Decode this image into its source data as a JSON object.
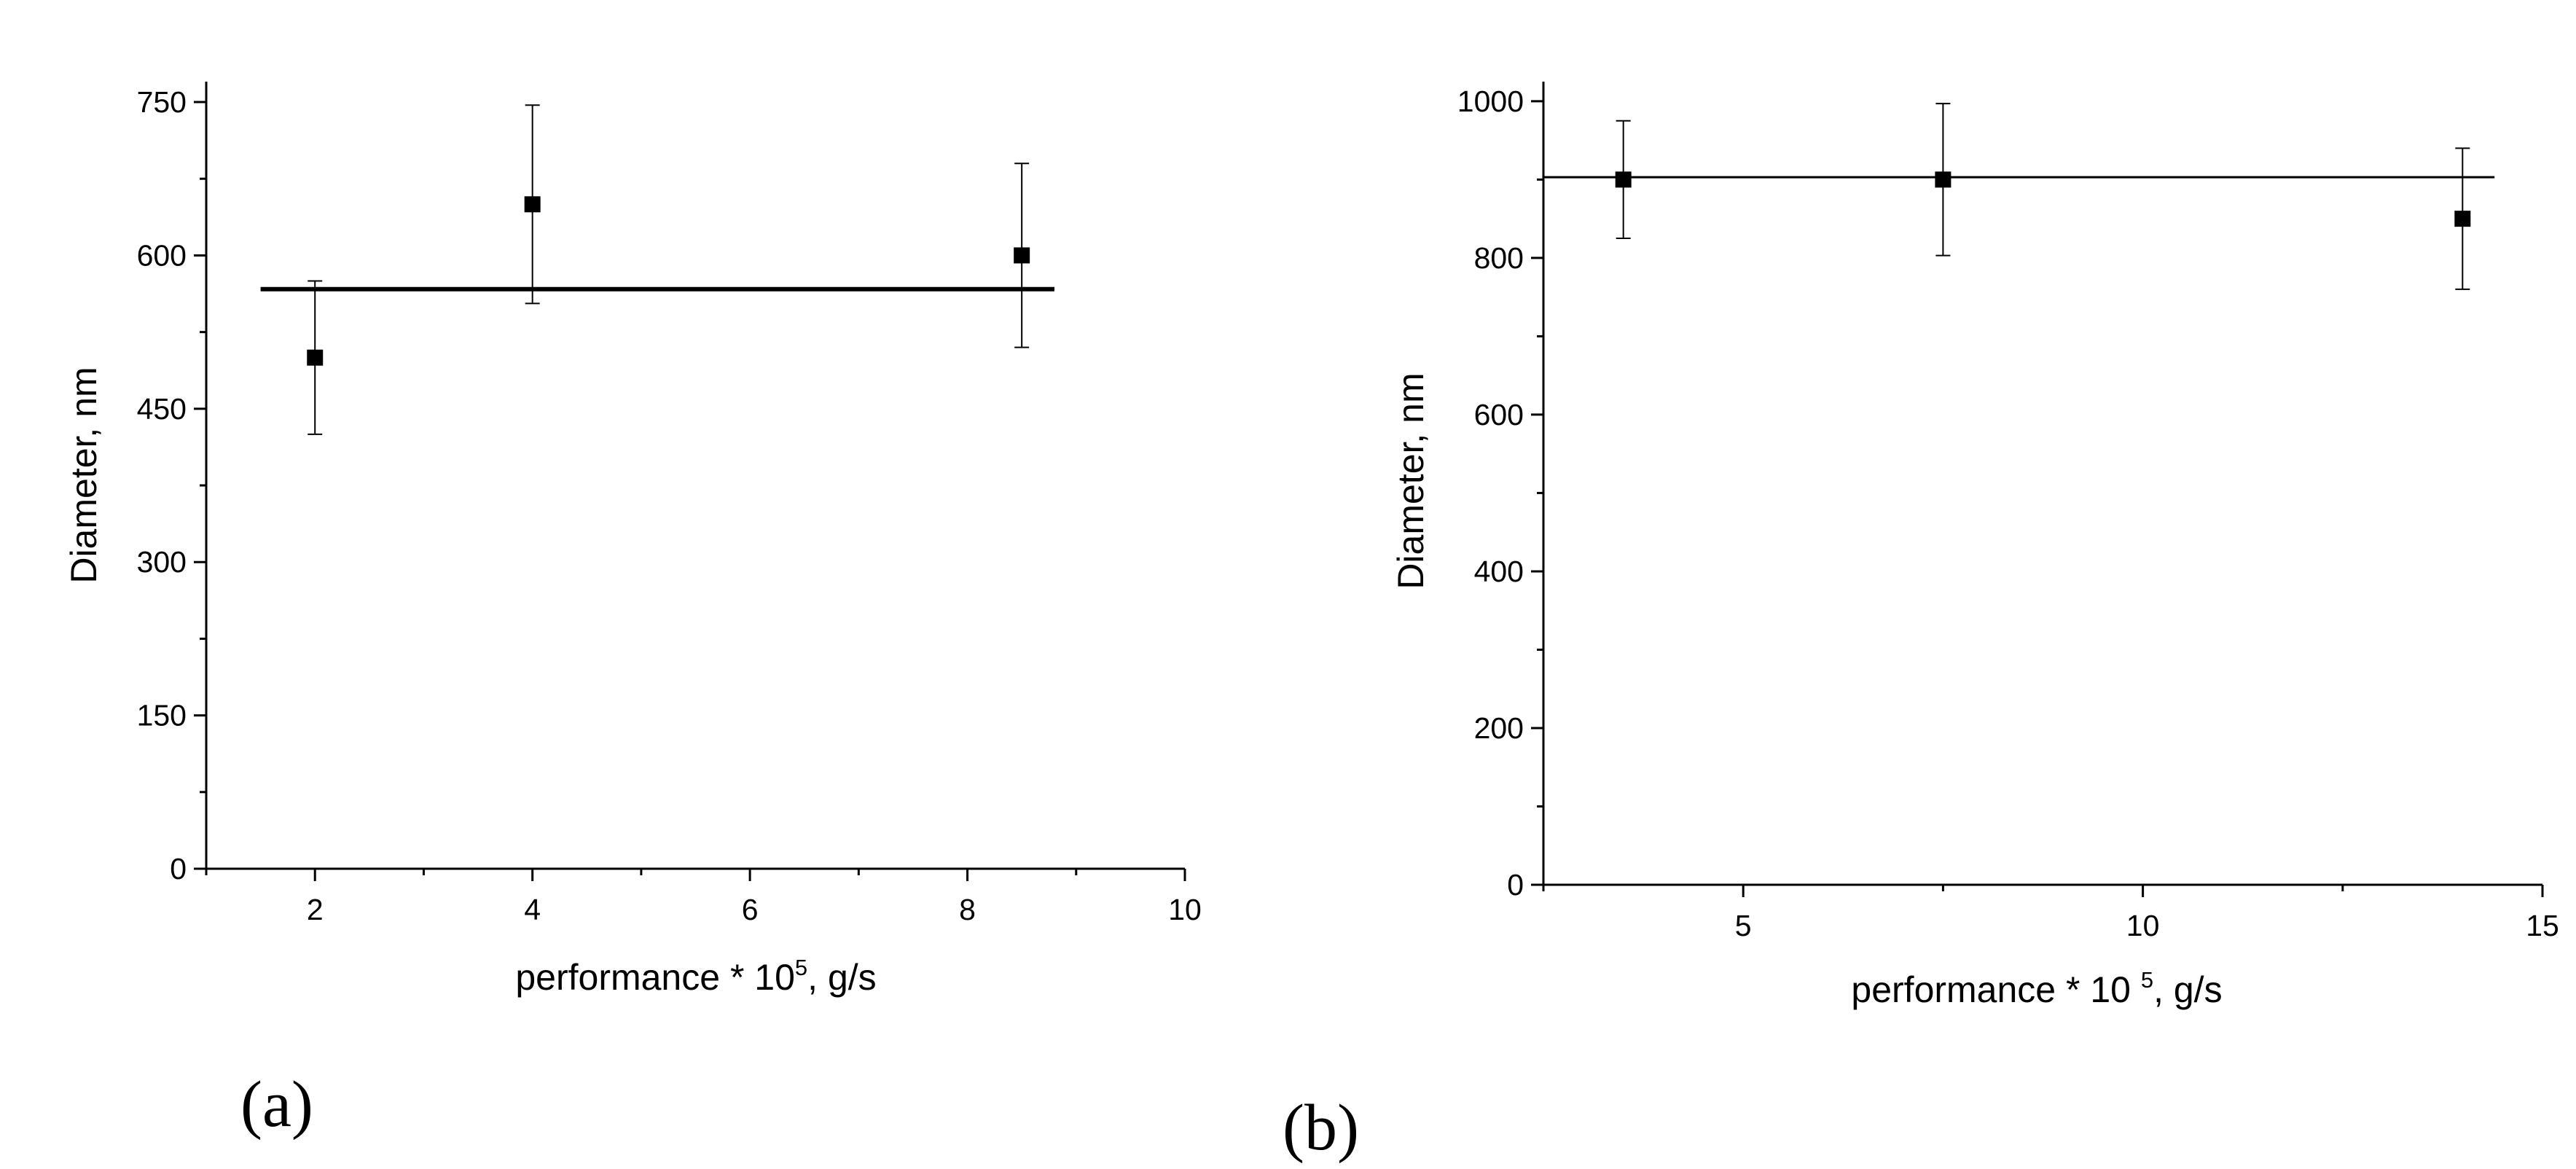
{
  "chart_data": [
    {
      "type": "scatter",
      "panel_label": "(a)",
      "xlabel": {
        "pre": "performance * 10",
        "sup": "5",
        "post": ", g/s"
      },
      "ylabel": "Diameter, nm",
      "xlim": [
        1,
        10
      ],
      "ylim": [
        0,
        770
      ],
      "xticks": [
        2,
        4,
        6,
        8,
        10
      ],
      "yticks": [
        0,
        150,
        300,
        450,
        600,
        750
      ],
      "x_minor_step": 1,
      "y_minor_step": 75,
      "points": [
        {
          "x": 2,
          "y": 500,
          "err": 75
        },
        {
          "x": 4,
          "y": 650,
          "err": 97
        },
        {
          "x": 8.5,
          "y": 600,
          "err": 90
        }
      ],
      "fit_line": {
        "x": [
          1.5,
          8.8
        ],
        "y": [
          567,
          567
        ]
      }
    },
    {
      "type": "scatter",
      "panel_label": "(b)",
      "xlabel": {
        "pre": "performance  * 10 ",
        "sup": "5",
        "post": ", g/s"
      },
      "ylabel": "Diameter, nm",
      "xlim": [
        2.5,
        15
      ],
      "ylim": [
        0,
        1025
      ],
      "xticks": [
        5,
        10,
        15
      ],
      "yticks": [
        0,
        200,
        400,
        600,
        800,
        1000
      ],
      "x_minor_step": 2.5,
      "y_minor_step": 100,
      "points": [
        {
          "x": 3.5,
          "y": 900,
          "err": 75
        },
        {
          "x": 7.5,
          "y": 900,
          "err": 97
        },
        {
          "x": 14,
          "y": 850,
          "err": 90
        }
      ],
      "fit_line": {
        "x": [
          2.5,
          14.4
        ],
        "y": [
          903,
          903
        ]
      }
    }
  ]
}
